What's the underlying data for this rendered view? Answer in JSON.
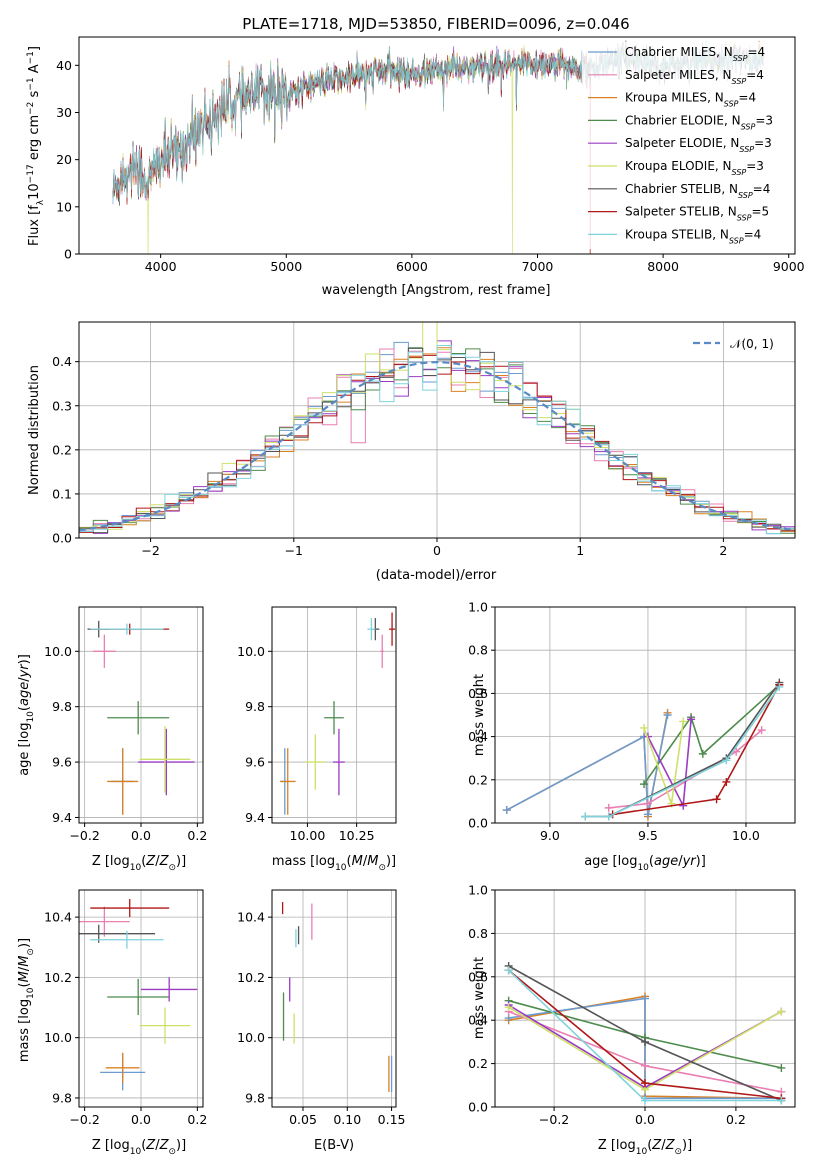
{
  "colors": {
    "Chabrier MILES": "#6b9bd1",
    "Salpeter MILES": "#e97fb2",
    "Kroupa MILES": "#d98224",
    "Chabrier ELODIE": "#4d8c4d",
    "Salpeter ELODIE": "#9a3bc4",
    "Kroupa ELODIE": "#cfe06a",
    "Chabrier STELIB": "#555555",
    "Salpeter STELIB": "#b01818",
    "Kroupa STELIB": "#7fd3dd"
  },
  "chart_data": [
    {
      "type": "line",
      "title": "PLATE=1718, MJD=53850, FIBERID=0096, z=0.046",
      "xlabel": "wavelength [Angstrom, rest frame]",
      "ylabel": "Flux [fλ10⁻¹⁷ erg cm⁻² s⁻¹ A⁻¹]",
      "xlim": [
        3350,
        9050
      ],
      "ylim": [
        0,
        46
      ],
      "xticks": [
        4000,
        5000,
        6000,
        7000,
        8000,
        9000
      ],
      "yticks": [
        0,
        10,
        20,
        30,
        40
      ],
      "legend_position": "top-right",
      "series": [
        {
          "name": "Chabrier MILES",
          "nssp": "4"
        },
        {
          "name": "Salpeter MILES",
          "nssp": "4"
        },
        {
          "name": "Kroupa MILES",
          "nssp": "4"
        },
        {
          "name": "Chabrier ELODIE",
          "nssp": "3"
        },
        {
          "name": "Salpeter ELODIE",
          "nssp": "3"
        },
        {
          "name": "Kroupa ELODIE",
          "nssp": "3"
        },
        {
          "name": "Chabrier STELIB",
          "nssp": "4"
        },
        {
          "name": "Salpeter STELIB",
          "nssp": "5"
        },
        {
          "name": "Kroupa STELIB",
          "nssp": "4"
        }
      ],
      "continuum": {
        "x": [
          3620,
          3700,
          3800,
          3900,
          4000,
          4100,
          4200,
          4300,
          4400,
          4500,
          4600,
          4700,
          4800,
          4900,
          5000,
          5200,
          5400,
          5600,
          5800,
          6000,
          6200,
          6400,
          6600,
          6800,
          7000,
          7200,
          7400,
          7600,
          7800,
          8000,
          8200,
          8400,
          8600,
          8800
        ],
        "y": [
          13,
          17,
          19,
          15,
          20,
          21,
          23,
          27,
          29,
          31,
          32.5,
          33,
          34,
          35,
          34,
          36,
          37,
          38,
          39,
          38,
          39,
          39.5,
          39.5,
          40,
          40.5,
          40,
          39,
          41,
          41.5,
          40,
          40.5,
          41,
          41.5,
          41
        ]
      },
      "model_dropouts": [
        {
          "series": "Kroupa ELODIE",
          "x": 3900
        },
        {
          "series": "Kroupa ELODIE",
          "x": 6800
        },
        {
          "series": "Salpeter STELIB",
          "x": 7420
        },
        {
          "series": "Kroupa MILES",
          "x": 7420
        }
      ]
    },
    {
      "type": "histogram",
      "xlabel": "(data-model)/error",
      "ylabel": "Normed distribution",
      "xlim": [
        -2.5,
        2.5
      ],
      "ylim": [
        0,
        0.49
      ],
      "xticks": [
        -2,
        -1,
        0,
        1,
        2
      ],
      "yticks": [
        0.0,
        0.1,
        0.2,
        0.3,
        0.4
      ],
      "reference": {
        "label": "𝒩(0, 1)",
        "style": "dashed",
        "color": "#5a8ac6"
      },
      "bin_width": 0.1,
      "legend_position": "top-right"
    },
    {
      "type": "errorbar",
      "xlabel": "Z [log₁₀(Z/Z☉)]",
      "ylabel": "age  [log₁₀(age/yr)]",
      "xlim": [
        -0.22,
        0.22
      ],
      "ylim": [
        9.38,
        10.16
      ],
      "xticks": [
        -0.2,
        0.0,
        0.2
      ],
      "yticks": [
        9.4,
        9.6,
        9.8,
        10.0
      ],
      "points": [
        {
          "series": "Chabrier MILES",
          "x": -0.065,
          "y": 9.53,
          "xerr": 0.04,
          "yerr": 0.12
        },
        {
          "series": "Salpeter MILES",
          "x": -0.13,
          "y": 10.0,
          "xerr": 0.04,
          "yerr": 0.06
        },
        {
          "series": "Kroupa MILES",
          "x": -0.065,
          "y": 9.53,
          "xerr": 0.055,
          "yerr": 0.12
        },
        {
          "series": "Chabrier ELODIE",
          "x": -0.01,
          "y": 9.76,
          "xerr": 0.11,
          "yerr": 0.06
        },
        {
          "series": "Salpeter ELODIE",
          "x": 0.09,
          "y": 9.6,
          "xerr": 0.1,
          "yerr": 0.12
        },
        {
          "series": "Kroupa ELODIE",
          "x": 0.085,
          "y": 9.61,
          "xerr": 0.09,
          "yerr": 0.12
        },
        {
          "series": "Chabrier STELIB",
          "x": -0.15,
          "y": 10.08,
          "xerr": 0.04,
          "yerr": 0.03
        },
        {
          "series": "Salpeter STELIB",
          "x": -0.04,
          "y": 10.08,
          "xerr": 0.14,
          "yerr": 0.02
        },
        {
          "series": "Kroupa STELIB",
          "x": -0.05,
          "y": 10.08,
          "xerr": 0.13,
          "yerr": 0.02
        }
      ]
    },
    {
      "type": "errorbar",
      "xlabel": "mass [log₁₀(M/M☉)]",
      "xlim": [
        9.82,
        10.45
      ],
      "ylim": [
        9.38,
        10.16
      ],
      "xticks": [
        10.0,
        10.25
      ],
      "yticks": [
        9.4,
        9.6,
        9.8,
        10.0
      ],
      "points": [
        {
          "series": "Chabrier MILES",
          "x": 9.885,
          "y": 9.53,
          "xerr": 0.02,
          "yerr": 0.12
        },
        {
          "series": "Salpeter MILES",
          "x": 10.38,
          "y": 10.0,
          "xerr": 0.01,
          "yerr": 0.06
        },
        {
          "series": "Kroupa MILES",
          "x": 9.9,
          "y": 9.53,
          "xerr": 0.04,
          "yerr": 0.12
        },
        {
          "series": "Chabrier ELODIE",
          "x": 10.135,
          "y": 9.76,
          "xerr": 0.05,
          "yerr": 0.06
        },
        {
          "series": "Salpeter ELODIE",
          "x": 10.16,
          "y": 9.6,
          "xerr": 0.03,
          "yerr": 0.12
        },
        {
          "series": "Kroupa ELODIE",
          "x": 10.04,
          "y": 9.6,
          "xerr": 0.05,
          "yerr": 0.1
        },
        {
          "series": "Chabrier STELIB",
          "x": 10.345,
          "y": 10.08,
          "xerr": 0.02,
          "yerr": 0.04
        },
        {
          "series": "Salpeter STELIB",
          "x": 10.43,
          "y": 10.08,
          "xerr": 0.015,
          "yerr": 0.06
        },
        {
          "series": "Kroupa STELIB",
          "x": 10.325,
          "y": 10.08,
          "xerr": 0.02,
          "yerr": 0.04
        }
      ]
    },
    {
      "type": "line",
      "xlabel": "age  [log₁₀(age/yr)]",
      "ylabel": "mass weight",
      "xlim": [
        8.72,
        10.25
      ],
      "ylim": [
        0,
        1.0
      ],
      "xticks": [
        9.0,
        9.5,
        10.0
      ],
      "yticks": [
        0.0,
        0.2,
        0.4,
        0.6,
        0.8,
        1.0
      ],
      "series": [
        {
          "name": "Kroupa MILES",
          "x": [
            8.78,
            9.48,
            9.5,
            9.6
          ],
          "y": [
            0.06,
            0.4,
            0.03,
            0.51
          ]
        },
        {
          "name": "Chabrier MILES",
          "x": [
            8.78,
            9.48,
            9.5,
            9.6
          ],
          "y": [
            0.06,
            0.4,
            0.04,
            0.5
          ]
        },
        {
          "name": "Salpeter MILES",
          "x": [
            9.3,
            9.5,
            9.95,
            10.08
          ],
          "y": [
            0.07,
            0.09,
            0.33,
            0.43
          ]
        },
        {
          "name": "Chabrier ELODIE",
          "x": [
            9.48,
            9.72,
            9.78,
            10.17
          ],
          "y": [
            0.18,
            0.49,
            0.32,
            0.64
          ]
        },
        {
          "name": "Salpeter ELODIE",
          "x": [
            9.5,
            9.68,
            9.72
          ],
          "y": [
            0.4,
            0.08,
            0.48
          ]
        },
        {
          "name": "Kroupa ELODIE",
          "x": [
            9.48,
            9.62,
            9.68
          ],
          "y": [
            0.44,
            0.09,
            0.47
          ]
        },
        {
          "name": "Chabrier STELIB",
          "x": [
            9.18,
            9.3,
            9.9,
            10.17
          ],
          "y": [
            0.03,
            0.03,
            0.3,
            0.65
          ]
        },
        {
          "name": "Salpeter STELIB",
          "x": [
            9.32,
            9.85,
            9.9,
            10.17
          ],
          "y": [
            0.04,
            0.11,
            0.19,
            0.64
          ]
        },
        {
          "name": "Kroupa STELIB",
          "x": [
            9.18,
            9.3,
            9.9,
            10.17
          ],
          "y": [
            0.03,
            0.03,
            0.29,
            0.63
          ]
        }
      ]
    },
    {
      "type": "errorbar",
      "xlabel": "Z [log₁₀(Z/Z☉)]",
      "ylabel": "mass [log₁₀(M/M☉)]",
      "xlim": [
        -0.22,
        0.22
      ],
      "ylim": [
        9.77,
        10.49
      ],
      "xticks": [
        -0.2,
        0.0,
        0.2
      ],
      "yticks": [
        9.8,
        10.0,
        10.2,
        10.4
      ],
      "points": [
        {
          "series": "Chabrier MILES",
          "x": -0.065,
          "y": 9.885,
          "xerr": 0.08,
          "yerr": 0.06
        },
        {
          "series": "Salpeter MILES",
          "x": -0.13,
          "y": 10.385,
          "xerr": 0.09,
          "yerr": 0.05
        },
        {
          "series": "Kroupa MILES",
          "x": -0.065,
          "y": 9.9,
          "xerr": 0.06,
          "yerr": 0.05
        },
        {
          "series": "Chabrier ELODIE",
          "x": -0.01,
          "y": 10.135,
          "xerr": 0.11,
          "yerr": 0.06
        },
        {
          "series": "Salpeter ELODIE",
          "x": 0.1,
          "y": 10.16,
          "xerr": 0.1,
          "yerr": 0.04
        },
        {
          "series": "Kroupa ELODIE",
          "x": 0.085,
          "y": 10.04,
          "xerr": 0.09,
          "yerr": 0.06
        },
        {
          "series": "Chabrier STELIB",
          "x": -0.15,
          "y": 10.345,
          "xerr": 0.2,
          "yerr": 0.03
        },
        {
          "series": "Salpeter STELIB",
          "x": -0.04,
          "y": 10.43,
          "xerr": 0.14,
          "yerr": 0.03
        },
        {
          "series": "Kroupa STELIB",
          "x": -0.05,
          "y": 10.325,
          "xerr": 0.13,
          "yerr": 0.03
        }
      ]
    },
    {
      "type": "errorbar",
      "xlabel": "E(B-V)",
      "xlim": [
        0.015,
        0.155
      ],
      "ylim": [
        9.77,
        10.49
      ],
      "xticks": [
        0.05,
        0.1,
        0.15
      ],
      "yticks": [
        9.8,
        10.0,
        10.2,
        10.4
      ],
      "points": [
        {
          "series": "Chabrier MILES",
          "x": 0.15,
          "y": 9.88,
          "yerr": 0.06
        },
        {
          "series": "Salpeter MILES",
          "x": 0.06,
          "y": 10.385,
          "yerr": 0.06
        },
        {
          "series": "Kroupa MILES",
          "x": 0.147,
          "y": 9.88,
          "yerr": 0.06
        },
        {
          "series": "Chabrier ELODIE",
          "x": 0.028,
          "y": 10.07,
          "yerr": 0.08
        },
        {
          "series": "Salpeter ELODIE",
          "x": 0.035,
          "y": 10.16,
          "yerr": 0.04
        },
        {
          "series": "Kroupa ELODIE",
          "x": 0.04,
          "y": 10.03,
          "yerr": 0.05
        },
        {
          "series": "Chabrier STELIB",
          "x": 0.045,
          "y": 10.34,
          "yerr": 0.03
        },
        {
          "series": "Salpeter STELIB",
          "x": 0.027,
          "y": 10.43,
          "yerr": 0.02
        },
        {
          "series": "Kroupa STELIB",
          "x": 0.042,
          "y": 10.33,
          "yerr": 0.03
        }
      ]
    },
    {
      "type": "line",
      "xlabel": "Z [log₁₀(Z/Z☉)]",
      "ylabel": "mass weight",
      "xlim": [
        -0.33,
        0.33
      ],
      "ylim": [
        0,
        1.0
      ],
      "xticks": [
        -0.2,
        0.0,
        0.2
      ],
      "yticks": [
        0.0,
        0.2,
        0.4,
        0.6,
        0.8,
        1.0
      ],
      "series": [
        {
          "name": "Kroupa MILES",
          "x": [
            -0.3,
            0.0,
            0.0,
            0.3
          ],
          "y": [
            0.4,
            0.51,
            0.05,
            0.04
          ]
        },
        {
          "name": "Chabrier MILES",
          "x": [
            -0.3,
            0.0,
            0.0,
            0.3
          ],
          "y": [
            0.41,
            0.5,
            0.04,
            0.04
          ]
        },
        {
          "name": "Salpeter MILES",
          "x": [
            -0.3,
            0.0,
            0.3
          ],
          "y": [
            0.44,
            0.19,
            0.07
          ]
        },
        {
          "name": "Chabrier ELODIE",
          "x": [
            -0.3,
            0.0,
            0.3
          ],
          "y": [
            0.49,
            0.32,
            0.18
          ]
        },
        {
          "name": "Salpeter ELODIE",
          "x": [
            -0.3,
            0.0,
            0.3
          ],
          "y": [
            0.47,
            0.09,
            0.44
          ]
        },
        {
          "name": "Kroupa ELODIE",
          "x": [
            -0.3,
            0.0,
            0.3
          ],
          "y": [
            0.46,
            0.08,
            0.44
          ]
        },
        {
          "name": "Chabrier STELIB",
          "x": [
            -0.3,
            0.0,
            0.3
          ],
          "y": [
            0.65,
            0.3,
            0.03
          ]
        },
        {
          "name": "Salpeter STELIB",
          "x": [
            -0.3,
            0.0,
            0.3
          ],
          "y": [
            0.63,
            0.11,
            0.04
          ]
        },
        {
          "name": "Kroupa STELIB",
          "x": [
            -0.3,
            0.0,
            0.3
          ],
          "y": [
            0.63,
            0.03,
            0.03
          ]
        }
      ]
    }
  ]
}
